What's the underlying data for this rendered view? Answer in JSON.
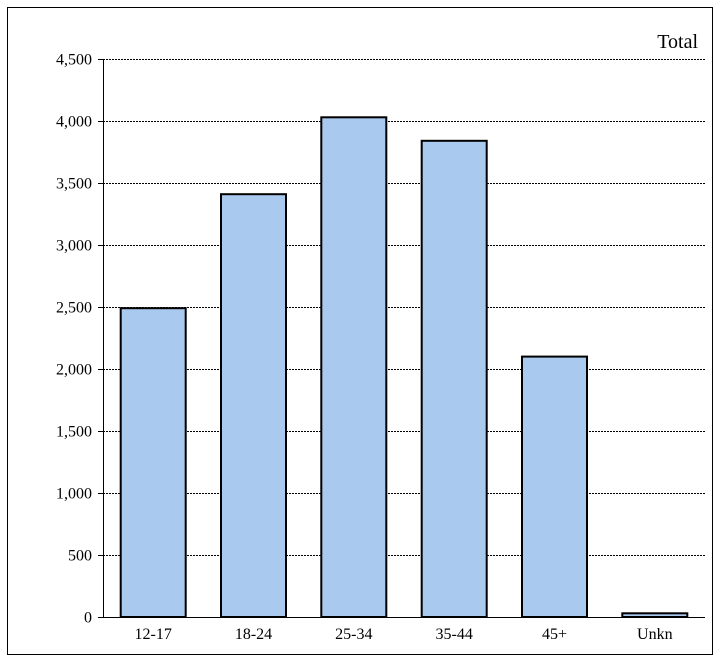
{
  "chart_data": {
    "type": "bar",
    "series_label": "Total",
    "categories": [
      "12-17",
      "18-24",
      "25-34",
      "35-44",
      "45+",
      "Unkn"
    ],
    "series": [
      {
        "name": "Total",
        "values": [
          2490,
          3410,
          4030,
          3840,
          2100,
          30
        ]
      }
    ],
    "yticks": [
      "0",
      "500",
      "1,000",
      "1,500",
      "2,000",
      "2,500",
      "3,000",
      "3,500",
      "4,000",
      "4,500"
    ],
    "ytick_values": [
      0,
      500,
      1000,
      1500,
      2000,
      2500,
      3000,
      3500,
      4000,
      4500
    ],
    "ylim": [
      0,
      4500
    ],
    "grid": true,
    "legend": "top-right",
    "colors": {
      "bar_fill": "#a9c9ee",
      "bar_stroke": "#000000",
      "grid": "#000000"
    }
  }
}
